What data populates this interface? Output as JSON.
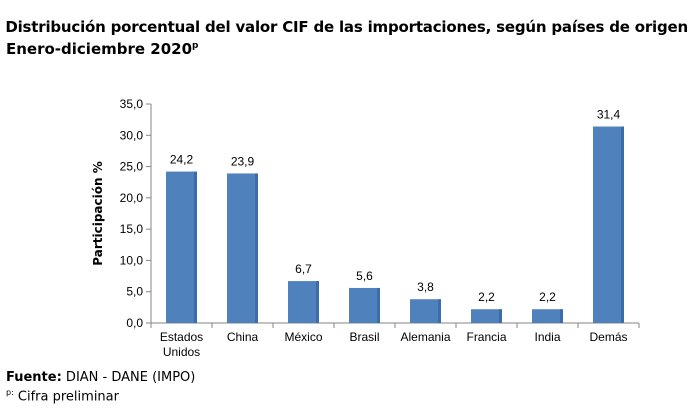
{
  "header": {
    "title": "Distribución porcentual del valor CIF de las importaciones, según países de origen",
    "subtitle": "Enero-diciembre  2020",
    "subtitle_superscript": "p"
  },
  "footer": {
    "source_label": "Fuente:",
    "source_value": " DIAN - DANE (IMPO)",
    "note_marker": "p:",
    "note_text": " Cifra preliminar"
  },
  "chart_data": {
    "type": "bar",
    "title": "Distribución porcentual del valor CIF de las importaciones, según países de origen",
    "subtitle": "Enero-diciembre 2020p",
    "ylabel": "Participación %",
    "xlabel": "",
    "categories": [
      "Estados Unidos",
      "China",
      "México",
      "Brasil",
      "Alemania",
      "Francia",
      "India",
      "Demás"
    ],
    "category_lines": [
      [
        "Estados",
        "Unidos"
      ],
      [
        "China"
      ],
      [
        "México"
      ],
      [
        "Brasil"
      ],
      [
        "Alemania"
      ],
      [
        "Francia"
      ],
      [
        "India"
      ],
      [
        "Demás"
      ]
    ],
    "values": [
      24.2,
      23.9,
      6.7,
      5.6,
      3.8,
      2.2,
      2.2,
      31.4
    ],
    "value_labels": [
      "24,2",
      "23,9",
      "6,7",
      "5,6",
      "3,8",
      "2,2",
      "2,2",
      "31,4"
    ],
    "ylim": [
      0,
      35
    ],
    "yticks": [
      0,
      5,
      10,
      15,
      20,
      25,
      30,
      35
    ],
    "ytick_labels": [
      "0,0",
      "5,0",
      "10,0",
      "15,0",
      "20,0",
      "25,0",
      "30,0",
      "35,0"
    ],
    "grid": false,
    "legend": "none",
    "bar_color": "#4f81bd"
  }
}
